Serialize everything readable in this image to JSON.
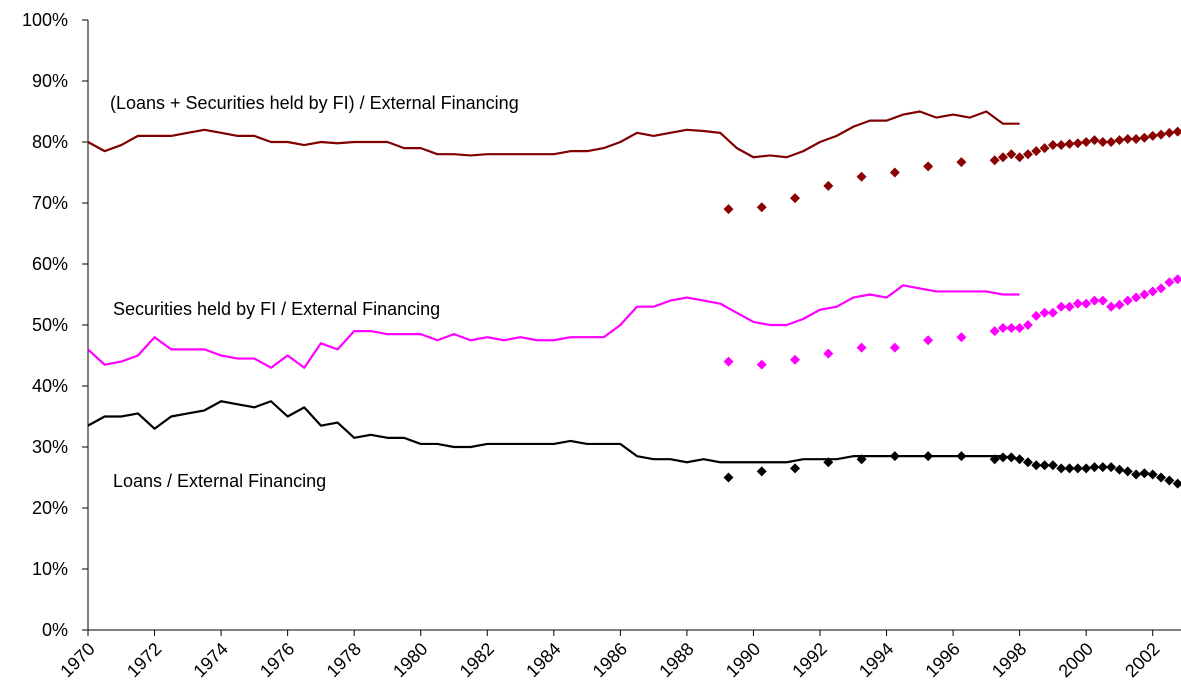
{
  "chart_data": {
    "type": "line",
    "annotations": [
      "(Loans + Securities held by FI) / External Financing",
      "Securities held by FI / External Financing",
      "Loans / External Financing"
    ],
    "xlim": [
      1970,
      2002.85
    ],
    "xticks": [
      1970,
      1972,
      1974,
      1976,
      1978,
      1980,
      1982,
      1984,
      1986,
      1988,
      1990,
      1992,
      1994,
      1996,
      1998,
      2000,
      2002
    ],
    "ylim": [
      0,
      100
    ],
    "yticks": [
      {
        "value": 0,
        "label": "0%"
      },
      {
        "value": 10,
        "label": "10%"
      },
      {
        "value": 20,
        "label": "20%"
      },
      {
        "value": 30,
        "label": "30%"
      },
      {
        "value": 40,
        "label": "40%"
      },
      {
        "value": 50,
        "label": "50%"
      },
      {
        "value": 60,
        "label": "60%"
      },
      {
        "value": 70,
        "label": "70%"
      },
      {
        "value": 80,
        "label": "80%"
      },
      {
        "value": 90,
        "label": "90%"
      },
      {
        "value": 100,
        "label": "100%"
      }
    ],
    "grid": false,
    "series": [
      {
        "type": "line",
        "color": "#800000",
        "x": [
          1970,
          1970.5,
          1971,
          1971.5,
          1972,
          1972.5,
          1973,
          1973.5,
          1974,
          1974.5,
          1975,
          1975.5,
          1976,
          1976.5,
          1977,
          1977.5,
          1978,
          1978.5,
          1979,
          1979.5,
          1980,
          1980.5,
          1981,
          1981.5,
          1982,
          1982.5,
          1983,
          1983.5,
          1984,
          1984.5,
          1985,
          1985.5,
          1986,
          1986.5,
          1987,
          1987.5,
          1988,
          1988.5,
          1989,
          1989.5,
          1990,
          1990.5,
          1991,
          1991.5,
          1992,
          1992.5,
          1993,
          1993.5,
          1994,
          1994.5,
          1995,
          1995.5,
          1996,
          1996.5,
          1997,
          1997.5,
          1998
        ],
        "values": [
          80,
          78.5,
          79.5,
          81,
          81,
          81,
          81.5,
          82,
          81.5,
          81,
          81,
          80,
          80,
          79.5,
          80,
          79.8,
          80,
          80,
          80,
          79,
          79,
          78,
          78,
          77.8,
          78,
          78,
          78,
          78,
          78,
          78.5,
          78.5,
          79,
          80,
          81.5,
          81,
          81.5,
          82,
          81.8,
          81.5,
          79,
          77.5,
          77.8,
          77.5,
          78.5,
          80,
          81,
          82.5,
          83.5,
          83.5,
          84.5,
          85,
          84,
          84.5,
          84,
          85,
          83,
          83
        ]
      },
      {
        "type": "line",
        "color": "#ff00ff",
        "x": [
          1970,
          1970.5,
          1971,
          1971.5,
          1972,
          1972.5,
          1973,
          1973.5,
          1974,
          1974.5,
          1975,
          1975.5,
          1976,
          1976.5,
          1977,
          1977.5,
          1978,
          1978.5,
          1979,
          1979.5,
          1980,
          1980.5,
          1981,
          1981.5,
          1982,
          1982.5,
          1983,
          1983.5,
          1984,
          1984.5,
          1985,
          1985.5,
          1986,
          1986.5,
          1987,
          1987.5,
          1988,
          1988.5,
          1989,
          1989.5,
          1990,
          1990.5,
          1991,
          1991.5,
          1992,
          1992.5,
          1993,
          1993.5,
          1994,
          1994.5,
          1995,
          1995.5,
          1996,
          1996.5,
          1997,
          1997.5,
          1998
        ],
        "values": [
          46,
          43.5,
          44,
          45,
          48,
          46,
          46,
          46,
          45,
          44.5,
          44.5,
          43,
          45,
          43,
          47,
          46,
          49,
          49,
          48.5,
          48.5,
          48.5,
          47.5,
          48.5,
          47.5,
          48,
          47.5,
          48,
          47.5,
          47.5,
          48,
          48,
          48,
          50,
          53,
          53,
          54,
          54.5,
          54,
          53.5,
          52,
          50.5,
          50,
          50,
          51,
          52.5,
          53,
          54.5,
          55,
          54.5,
          56.5,
          56,
          55.5,
          55.5,
          55.5,
          55.5,
          55,
          55
        ]
      },
      {
        "type": "line",
        "color": "#000000",
        "x": [
          1970,
          1970.5,
          1971,
          1971.5,
          1972,
          1972.5,
          1973,
          1973.5,
          1974,
          1974.5,
          1975,
          1975.5,
          1976,
          1976.5,
          1977,
          1977.5,
          1978,
          1978.5,
          1979,
          1979.5,
          1980,
          1980.5,
          1981,
          1981.5,
          1982,
          1982.5,
          1983,
          1983.5,
          1984,
          1984.5,
          1985,
          1985.5,
          1986,
          1986.5,
          1987,
          1987.5,
          1988,
          1988.5,
          1989,
          1989.5,
          1990,
          1990.5,
          1991,
          1991.5,
          1992,
          1992.5,
          1993,
          1993.5,
          1994,
          1994.5,
          1995,
          1995.5,
          1996,
          1996.5,
          1997,
          1997.5,
          1998
        ],
        "values": [
          33.5,
          35,
          35,
          35.5,
          33,
          35,
          35.5,
          36,
          37.5,
          37,
          36.5,
          37.5,
          35,
          36.5,
          33.5,
          34,
          31.5,
          32,
          31.5,
          31.5,
          30.5,
          30.5,
          30,
          30,
          30.5,
          30.5,
          30.5,
          30.5,
          30.5,
          31,
          30.5,
          30.5,
          30.5,
          28.5,
          28,
          28,
          27.5,
          28,
          27.5,
          27.5,
          27.5,
          27.5,
          27.5,
          28,
          28,
          28,
          28.5,
          28.5,
          28.5,
          28.5,
          28.5,
          28.5,
          28.5,
          28.5,
          28.5,
          28.5,
          28
        ]
      },
      {
        "type": "scatter",
        "marker": "diamond",
        "color": "#8b0000",
        "x": [
          1989.25,
          1990.25,
          1991.25,
          1992.25,
          1993.25,
          1994.25,
          1995.25,
          1996.25,
          1997.25,
          1997.5,
          1997.75,
          1998,
          1998.25,
          1998.5,
          1998.75,
          1999,
          1999.25,
          1999.5,
          1999.75,
          2000,
          2000.25,
          2000.5,
          2000.75,
          2001,
          2001.25,
          2001.5,
          2001.75,
          2002,
          2002.25,
          2002.5,
          2002.75
        ],
        "values": [
          69,
          69.3,
          70.8,
          72.8,
          74.3,
          75,
          76,
          76.7,
          77,
          77.5,
          78,
          77.5,
          78,
          78.5,
          79,
          79.5,
          79.5,
          79.7,
          79.8,
          80,
          80.3,
          80,
          80,
          80.3,
          80.5,
          80.5,
          80.7,
          81,
          81.2,
          81.5,
          81.7
        ]
      },
      {
        "type": "scatter",
        "marker": "diamond",
        "color": "#ff00ff",
        "x": [
          1989.25,
          1990.25,
          1991.25,
          1992.25,
          1993.25,
          1994.25,
          1995.25,
          1996.25,
          1997.25,
          1997.5,
          1997.75,
          1998,
          1998.25,
          1998.5,
          1998.75,
          1999,
          1999.25,
          1999.5,
          1999.75,
          2000,
          2000.25,
          2000.5,
          2000.75,
          2001,
          2001.25,
          2001.5,
          2001.75,
          2002,
          2002.25,
          2002.5,
          2002.75
        ],
        "values": [
          44,
          43.5,
          44.3,
          45.3,
          46.3,
          46.3,
          47.5,
          48,
          49,
          49.5,
          49.5,
          49.5,
          50,
          51.5,
          52,
          52,
          53,
          53,
          53.5,
          53.5,
          54,
          54,
          53,
          53.3,
          54,
          54.5,
          55,
          55.5,
          56,
          57,
          57.5
        ]
      },
      {
        "type": "scatter",
        "marker": "diamond",
        "color": "#000000",
        "x": [
          1989.25,
          1990.25,
          1991.25,
          1992.25,
          1993.25,
          1994.25,
          1995.25,
          1996.25,
          1997.25,
          1997.5,
          1997.75,
          1998,
          1998.25,
          1998.5,
          1998.75,
          1999,
          1999.25,
          1999.5,
          1999.75,
          2000,
          2000.25,
          2000.5,
          2000.75,
          2001,
          2001.25,
          2001.5,
          2001.75,
          2002,
          2002.25,
          2002.5,
          2002.75
        ],
        "values": [
          25,
          26,
          26.5,
          27.5,
          28,
          28.5,
          28.5,
          28.5,
          28,
          28.3,
          28.3,
          28,
          27.5,
          27,
          27,
          27,
          26.5,
          26.5,
          26.5,
          26.5,
          26.7,
          26.7,
          26.7,
          26.3,
          26,
          25.5,
          25.7,
          25.5,
          25,
          24.5,
          24
        ]
      }
    ]
  }
}
